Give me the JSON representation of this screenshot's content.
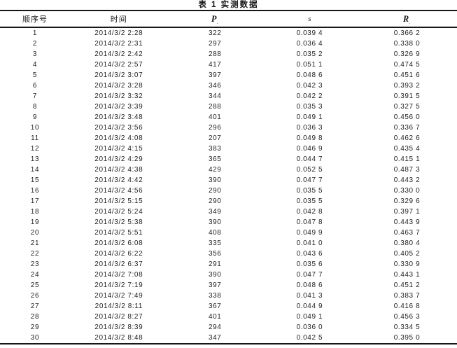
{
  "title": "表 1  实测数据",
  "table": {
    "headers": [
      {
        "label": "顺序号",
        "sub": ""
      },
      {
        "label": "时间",
        "sub": ""
      },
      {
        "label": "P",
        "sub": "."
      },
      {
        "label": "s",
        "sub": ""
      },
      {
        "label": "R",
        "sub": "."
      }
    ],
    "rows": [
      [
        "1",
        "2014/3/2 2:28",
        "322",
        "0.039 4",
        "0.366 2"
      ],
      [
        "2",
        "2014/3/2 2:31",
        "297",
        "0.036 4",
        "0.338 0"
      ],
      [
        "3",
        "2014/3/2 2:42",
        "288",
        "0.035 2",
        "0.326 9"
      ],
      [
        "4",
        "2014/3/2 2:57",
        "417",
        "0.051 1",
        "0.474 5"
      ],
      [
        "5",
        "2014/3/2 3:07",
        "397",
        "0.048 6",
        "0.451 6"
      ],
      [
        "6",
        "2014/3/2 3:28",
        "346",
        "0.042 3",
        "0.393 2"
      ],
      [
        "7",
        "2014/3/2 3:32",
        "344",
        "0.042 2",
        "0.391 5"
      ],
      [
        "8",
        "2014/3/2 3:39",
        "288",
        "0.035 3",
        "0.327 5"
      ],
      [
        "9",
        "2014/3/2 3:48",
        "401",
        "0.049 1",
        "0.456 0"
      ],
      [
        "10",
        "2014/3/2 3:56",
        "296",
        "0.036 3",
        "0.336 7"
      ],
      [
        "11",
        "2014/3/2 4:08",
        "207",
        "0.049 8",
        "0.462 6"
      ],
      [
        "12",
        "2014/3/2 4:15",
        "383",
        "0.046 9",
        "0.435 4"
      ],
      [
        "13",
        "2014/3/2 4:29",
        "365",
        "0.044 7",
        "0.415 1"
      ],
      [
        "14",
        "2014/3/2 4:38",
        "429",
        "0.052 5",
        "0.487 3"
      ],
      [
        "15",
        "2014/3/2 4:42",
        "390",
        "0.047 7",
        "0.443 2"
      ],
      [
        "16",
        "2014/3/2 4:56",
        "290",
        "0.035 5",
        "0.330 0"
      ],
      [
        "17",
        "2014/3/2 5:15",
        "290",
        "0.035 5",
        "0.329 6"
      ],
      [
        "18",
        "2014/3/2 5:24",
        "349",
        "0.042 8",
        "0.397 1"
      ],
      [
        "19",
        "2014/3/2 5:38",
        "390",
        "0.047 8",
        "0.443 9"
      ],
      [
        "20",
        "2014/3/2 5:51",
        "408",
        "0.049 9",
        "0.463 7"
      ],
      [
        "21",
        "2014/3/2 6:08",
        "335",
        "0.041 0",
        "0.380 4"
      ],
      [
        "22",
        "2014/3/2 6:22",
        "356",
        "0.043 6",
        "0.405 2"
      ],
      [
        "23",
        "2014/3/2 6:37",
        "291",
        "0.035 6",
        "0.330 9"
      ],
      [
        "24",
        "2014/3/2 7:08",
        "390",
        "0.047 7",
        "0.443 1"
      ],
      [
        "25",
        "2014/3/2 7:19",
        "397",
        "0.048 6",
        "0.451 2"
      ],
      [
        "26",
        "2014/3/2 7:49",
        "338",
        "0.041 3",
        "0.383 7"
      ],
      [
        "27",
        "2014/3/2 8:11",
        "367",
        "0.044 9",
        "0.416 8"
      ],
      [
        "28",
        "2014/3/2 8:27",
        "401",
        "0.049 1",
        "0.456 3"
      ],
      [
        "29",
        "2014/3/2 8:39",
        "294",
        "0.036 0",
        "0.334 5"
      ],
      [
        "30",
        "2014/3/2 8:48",
        "347",
        "0.042 5",
        "0.395 0"
      ]
    ]
  },
  "colors": {
    "rule": "#161616",
    "text": "#242424",
    "background": "#ffffff"
  }
}
